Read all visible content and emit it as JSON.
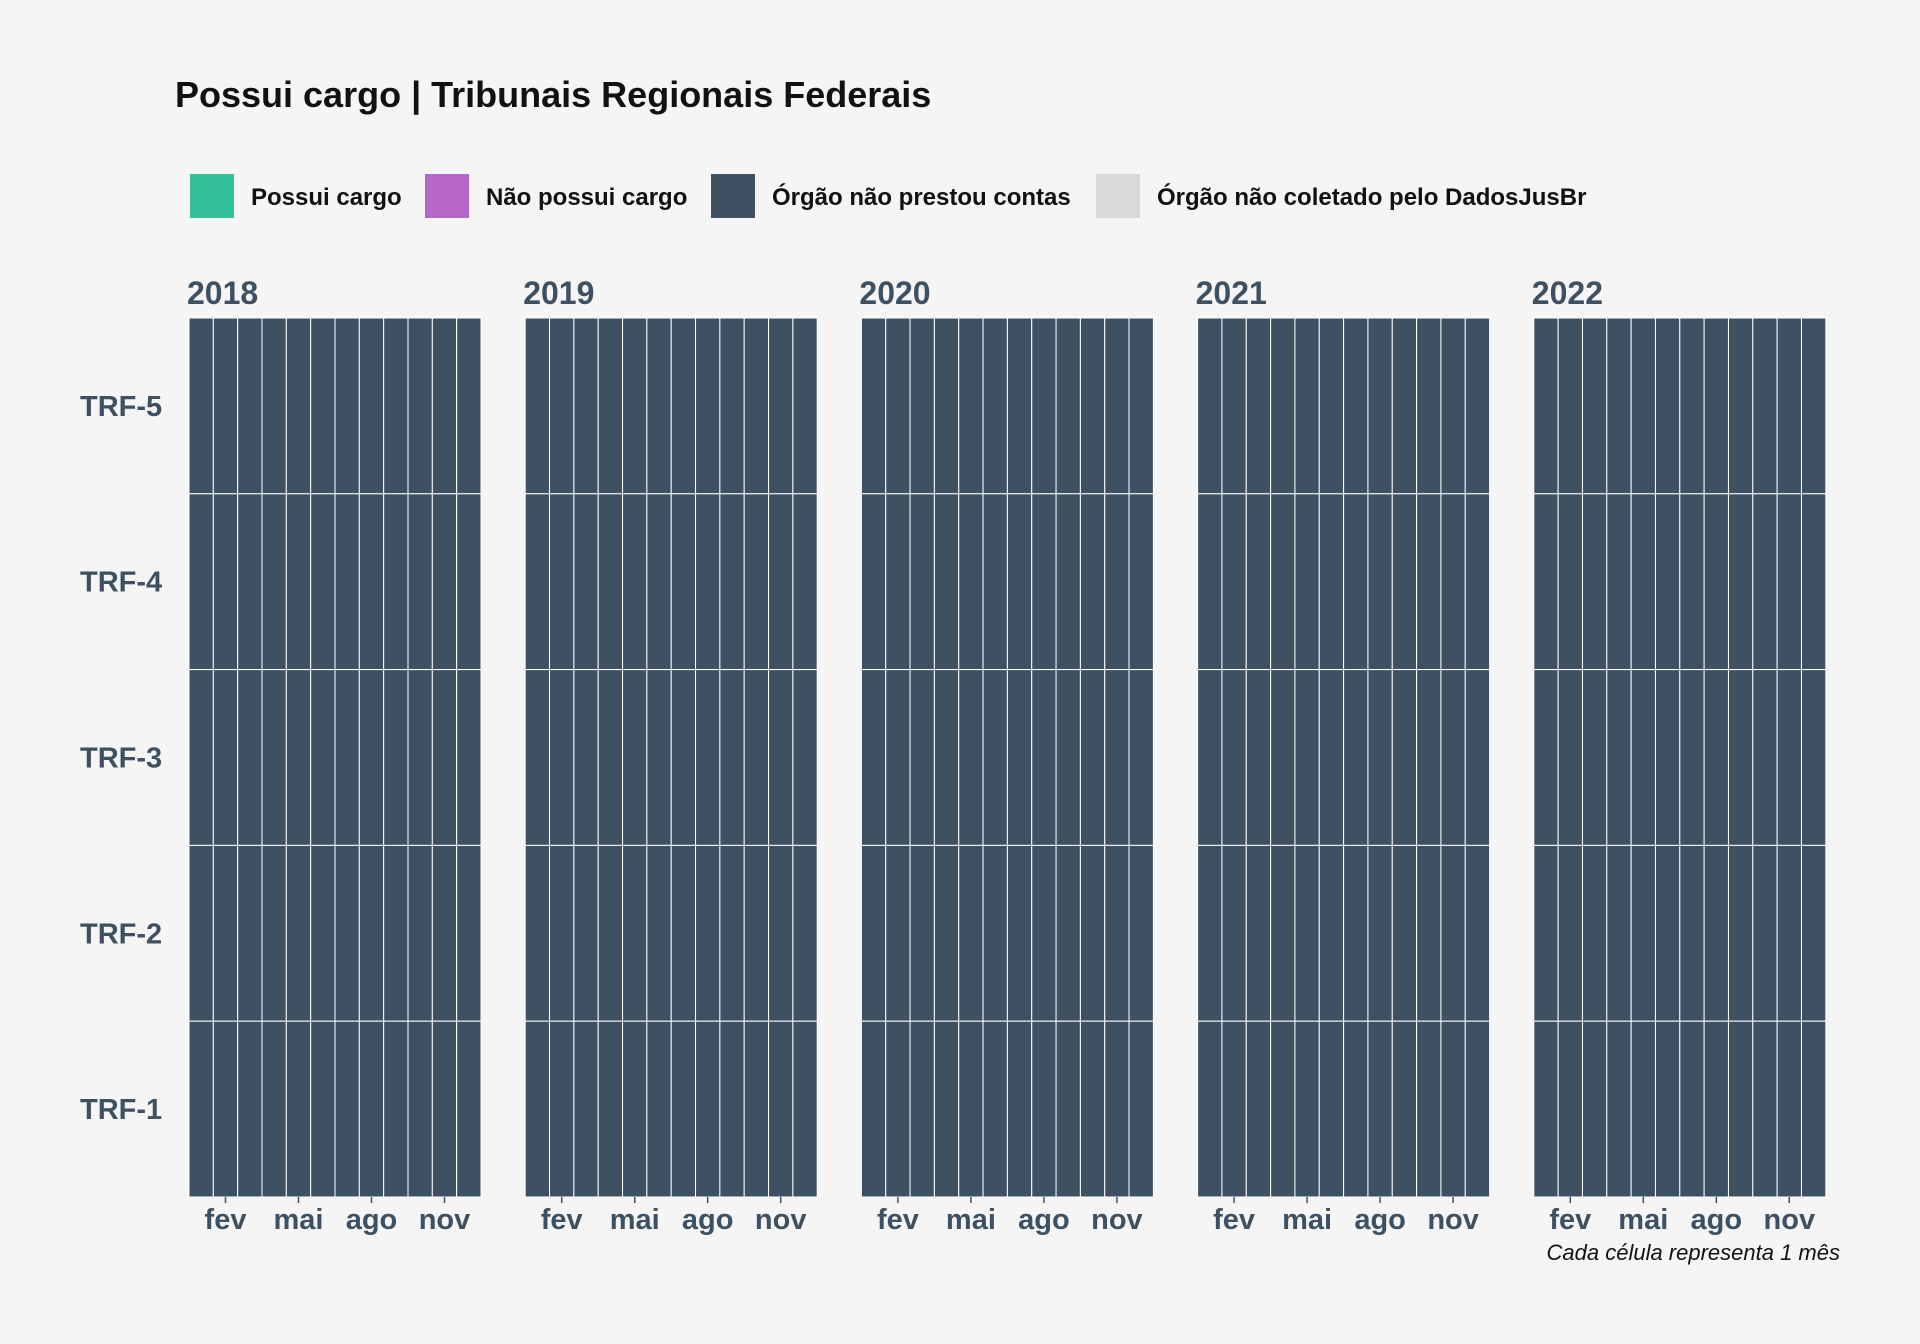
{
  "chart_data": {
    "type": "heatmap",
    "title": "Possui cargo | Tribunais Regionais Federais",
    "caption": "Cada célula representa 1 mês",
    "legend": {
      "placement": "top",
      "entries": [
        {
          "label": "Possui cargo",
          "color": "#33bf98"
        },
        {
          "label": "Não possui cargo",
          "color": "#b766c9"
        },
        {
          "label": "Órgão não prestou contas",
          "color": "#3e5163"
        },
        {
          "label": "Órgão não coletado pelo DadosJusBr",
          "color": "#d9d9d9"
        }
      ]
    },
    "rows": [
      "TRF-5",
      "TRF-4",
      "TRF-3",
      "TRF-2",
      "TRF-1"
    ],
    "months": 12,
    "x_ticks": [
      {
        "month": 2,
        "label": "fev"
      },
      {
        "month": 5,
        "label": "mai"
      },
      {
        "month": 8,
        "label": "ago"
      },
      {
        "month": 11,
        "label": "nov"
      }
    ],
    "panels": [
      {
        "year": "2018",
        "status": "Órgão não prestou contas"
      },
      {
        "year": "2019",
        "status": "Órgão não prestou contas"
      },
      {
        "year": "2020",
        "status": "Órgão não prestou contas"
      },
      {
        "year": "2021",
        "status": "Órgão não prestou contas"
      },
      {
        "year": "2022",
        "status": "Órgão não prestou contas"
      }
    ],
    "cell_gap_color": "#ffffff"
  }
}
